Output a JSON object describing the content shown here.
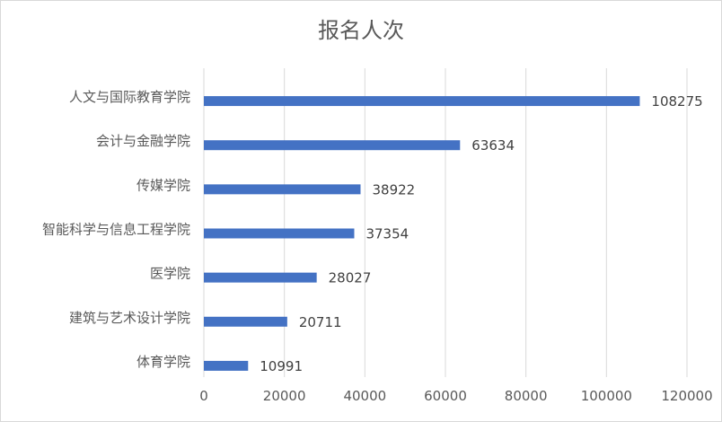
{
  "chart_data": {
    "type": "bar",
    "orientation": "horizontal",
    "title": "报名人次",
    "categories": [
      "人文与国际教育学院",
      "会计与金融学院",
      "传媒学院",
      "智能科学与信息工程学院",
      "医学院",
      "建筑与艺术设计学院",
      "体育学院"
    ],
    "values": [
      108275,
      63634,
      38922,
      37354,
      28027,
      20711,
      10991
    ],
    "xlim": [
      0,
      120000
    ],
    "xticks": [
      0,
      20000,
      40000,
      60000,
      80000,
      100000,
      120000
    ],
    "grid": true,
    "bar_color": "#4472c4",
    "grid_color": "#d9d9d9",
    "data_labels": true
  }
}
